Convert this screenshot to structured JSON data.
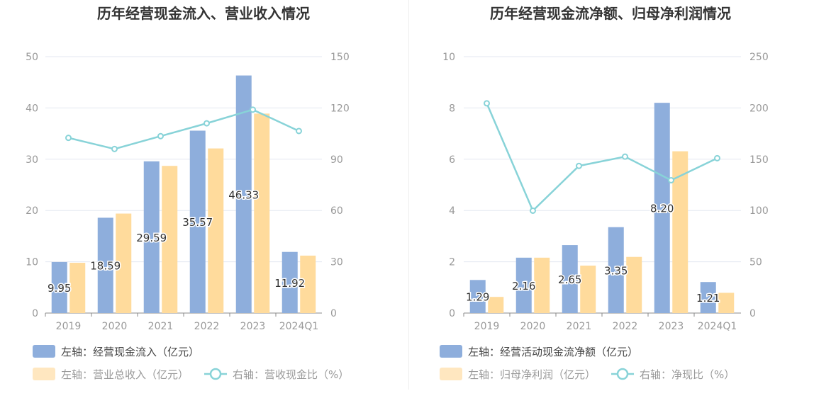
{
  "colors": {
    "bar1": "#8eaedc",
    "bar2": "#ffdb9c",
    "bar2_legend": "#ffe7c0",
    "line": "#88d3d8",
    "grid": "#e3e7f0",
    "axis_text": "#999999",
    "title": "#333333",
    "legend_text": "#444444",
    "legend_text_light": "#999999"
  },
  "chart_data": [
    {
      "type": "bar",
      "title": "历年经营现金流入、营业收入情况",
      "categories": [
        "2019",
        "2020",
        "2021",
        "2022",
        "2023",
        "2024Q1"
      ],
      "ylim_left": [
        0,
        50
      ],
      "yticks_left": [
        "0",
        "10",
        "20",
        "30",
        "40",
        "50"
      ],
      "ylim_right": [
        0,
        150
      ],
      "yticks_right": [
        "0",
        "30",
        "60",
        "90",
        "120",
        "150"
      ],
      "grid": true,
      "legend_position": "bottom-left",
      "series": [
        {
          "name": "左轴：经营现金流入（亿元）",
          "kind": "bar",
          "axis": "left",
          "values": [
            9.95,
            18.59,
            29.59,
            35.57,
            46.33,
            11.92
          ],
          "labels": [
            "9.95",
            "18.59",
            "29.59",
            "35.57",
            "46.33",
            "11.92"
          ]
        },
        {
          "name": "左轴：营业总收入（亿元）",
          "kind": "bar",
          "axis": "left",
          "values": [
            9.8,
            19.4,
            28.7,
            32.1,
            38.9,
            11.2
          ]
        },
        {
          "name": "右轴：营收现金比（%）",
          "kind": "line",
          "axis": "right",
          "values": [
            102.5,
            96.0,
            103.5,
            111.0,
            119.0,
            106.5
          ]
        }
      ]
    },
    {
      "type": "bar",
      "title": "历年经营现金流净额、归母净利润情况",
      "categories": [
        "2019",
        "2020",
        "2021",
        "2022",
        "2023",
        "2024Q1"
      ],
      "ylim_left": [
        0,
        10
      ],
      "yticks_left": [
        "0",
        "2",
        "4",
        "6",
        "8",
        "10"
      ],
      "ylim_right": [
        0,
        250
      ],
      "yticks_right": [
        "0",
        "50",
        "100",
        "150",
        "200",
        "250"
      ],
      "grid": true,
      "legend_position": "bottom-left",
      "series": [
        {
          "name": "左轴：经营活动现金流净额（亿元）",
          "kind": "bar",
          "axis": "left",
          "values": [
            1.29,
            2.16,
            2.65,
            3.35,
            8.2,
            1.21
          ],
          "labels": [
            "1.29",
            "2.16",
            "2.65",
            "3.35",
            "8.20",
            "1.21"
          ]
        },
        {
          "name": "左轴：归母净利润（亿元）",
          "kind": "bar",
          "axis": "left",
          "values": [
            0.63,
            2.16,
            1.85,
            2.19,
            6.31,
            0.79
          ]
        },
        {
          "name": "右轴：净现比（%）",
          "kind": "line",
          "axis": "right",
          "values": [
            204.5,
            99.8,
            143.5,
            152.5,
            129.5,
            151.0
          ]
        }
      ]
    }
  ]
}
